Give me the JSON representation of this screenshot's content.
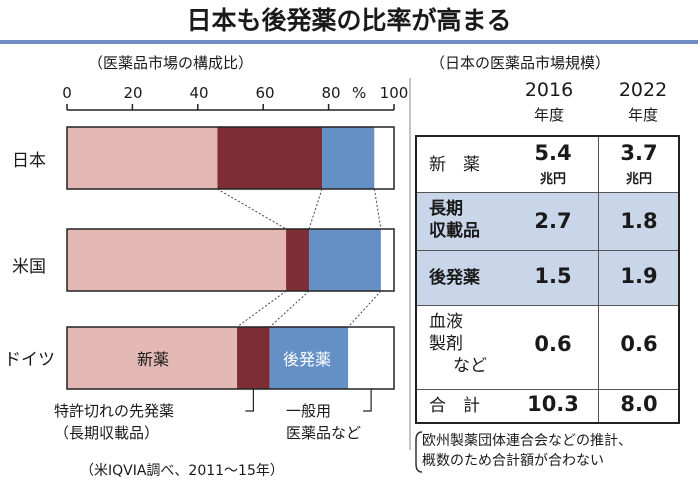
{
  "title": "日本も後発薬の比率が高まる",
  "chart_data": {
    "type": "bar",
    "orientation": "horizontal",
    "stacked": true,
    "subtitle": "（医薬品市場の構成比）",
    "categories": [
      "日本",
      "米国",
      "ドイツ"
    ],
    "x_ticks": [
      0,
      20,
      40,
      60,
      80,
      100
    ],
    "x_unit": "%",
    "xlim": [
      0,
      100
    ],
    "series": [
      {
        "name": "新薬",
        "color": "#e3b8b5",
        "values": [
          46,
          67,
          52
        ]
      },
      {
        "name": "特許切れの先発薬（長期収載品）",
        "color": "#7d2e35",
        "values": [
          32,
          7,
          10
        ]
      },
      {
        "name": "後発薬",
        "color": "#6590c6",
        "values": [
          16,
          22,
          24
        ]
      },
      {
        "name": "一般用医薬品など",
        "color": "#ffffff",
        "values": [
          6,
          4,
          14
        ]
      }
    ],
    "inbar_labels": {
      "new_drug": "新薬",
      "generic": "後発薬"
    },
    "legend_notes": {
      "long_listed_line1": "特許切れの先発薬",
      "long_listed_line2": "（長期収載品）",
      "otc_line1": "一般用",
      "otc_line2": "医薬品など"
    },
    "source": "（米IQVIA調べ、2011～15年）"
  },
  "market": {
    "subtitle": "（日本の医薬品市場規模）",
    "years": [
      "2016",
      "2022"
    ],
    "year_suffix": "年度",
    "unit": "兆円",
    "rows": [
      {
        "label": "新　薬",
        "v2016": "5.4",
        "v2022": "3.7"
      },
      {
        "label1": "長期",
        "label2": "収載品",
        "v2016": "2.7",
        "v2022": "1.8"
      },
      {
        "label": "後発薬",
        "v2016": "1.5",
        "v2022": "1.9"
      },
      {
        "label1": "血液",
        "label2": "製剤",
        "label3": "など",
        "v2016": "0.6",
        "v2022": "0.6"
      },
      {
        "label": "合　計",
        "v2016": "10.3",
        "v2022": "8.0"
      }
    ],
    "footnote_line1": "欧州製薬団体連合会などの推計、",
    "footnote_line2": "概数のため合計額が合わない"
  }
}
